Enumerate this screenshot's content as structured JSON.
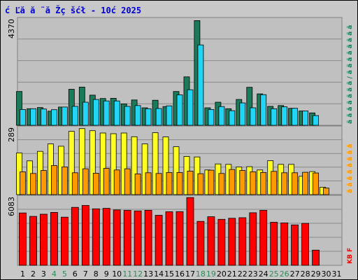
{
  "title": "ć Ľă  ă ¨ă Žç šćł  - 10ć   2025",
  "chart_data": {
    "type": "bar",
    "panels": [
      {
        "ymax_label": "4370",
        "ymax": 4370,
        "series": [
          {
            "color": "#1a7a5a",
            "values": [
              1390,
              680,
              730,
              580,
              750,
              1480,
              1570,
              1240,
              1100,
              1110,
              880,
              1040,
              720,
              1030,
              770,
              1390,
              1990,
              4300,
              720,
              950,
              680,
              1060,
              1560,
              1290,
              780,
              810,
              700,
              590,
              510
            ]
          },
          {
            "color": "#22d5f5",
            "values": [
              650,
              680,
              670,
              640,
              750,
              780,
              950,
              1060,
              1000,
              1000,
              780,
              810,
              680,
              690,
              800,
              1250,
              1460,
              3300,
              650,
              770,
              600,
              920,
              720,
              1260,
              680,
              760,
              700,
              590,
              400
            ]
          }
        ],
        "legend_text": "ã ä ã ã ã ã ã / ã ã ã ã ã ã ã ã",
        "legend_color": "#1a7a5a"
      },
      {
        "ymax_label": "289",
        "ymax": 289,
        "series": [
          {
            "color": "#ffff22",
            "values": [
              179,
              145,
              186,
              218,
              208,
              272,
              284,
              275,
              265,
              262,
              265,
              249,
              218,
              266,
              248,
              206,
              164,
              162,
              106,
              132,
              130,
              119,
              120,
              106,
              146,
              130,
              130,
              79,
              99,
              32
            ]
          },
          {
            "color": "#ff9900",
            "values": [
              98,
              91,
              104,
              125,
              119,
              94,
              111,
              92,
              113,
              106,
              111,
              89,
              94,
              91,
              95,
              95,
              101,
              90,
              105,
              91,
              108,
              104,
              98,
              95,
              100,
              94,
              94,
              96,
              93,
              28
            ]
          }
        ],
        "legend_text": "ã ã ã ã ã ã ã ã",
        "legend_color": "#ff9900"
      },
      {
        "ymax_label": "6083",
        "ymax": 6083,
        "series": [
          {
            "color": "#ff0000",
            "values": [
              4640,
              4340,
              4530,
              4690,
              4270,
              5140,
              5310,
              5010,
              5050,
              4910,
              4870,
              4820,
              4880,
              4440,
              4750,
              4760,
              6010,
              3900,
              4310,
              4080,
              4170,
              4220,
              4660,
              4870,
              3820,
              3760,
              3580,
              3720,
              1350
            ]
          }
        ],
        "legend_text": "KB F",
        "legend_color": "#ff0000"
      }
    ],
    "x_labels": [
      "1",
      "2",
      "3",
      "4",
      "5",
      "6",
      "7",
      "8",
      "9",
      "10",
      "11",
      "12",
      "13",
      "14",
      "15",
      "16",
      "17",
      "18",
      "19",
      "20",
      "21",
      "22",
      "23",
      "24",
      "25",
      "26",
      "27",
      "28",
      "29",
      "30",
      "31"
    ],
    "x_label_colors": [
      "#000",
      "#000",
      "#000",
      "#2e8b57",
      "#2e8b57",
      "#000",
      "#000",
      "#000",
      "#000",
      "#000",
      "#2e8b57",
      "#2e8b57",
      "#000",
      "#000",
      "#000",
      "#000",
      "#000",
      "#2e8b57",
      "#2e8b57",
      "#000",
      "#000",
      "#000",
      "#000",
      "#000",
      "#2e8b57",
      "#2e8b57",
      "#000",
      "#000",
      "#000",
      "#000",
      "#000"
    ]
  }
}
